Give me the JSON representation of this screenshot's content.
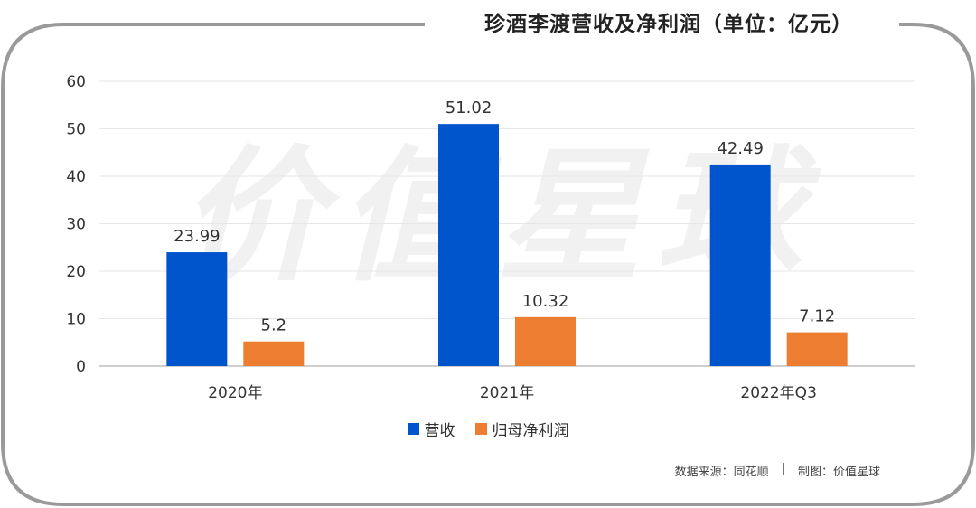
{
  "title": "珍酒李渡营收及净利润（单位：亿元）",
  "watermark": "价值星球",
  "footer": {
    "source": "数据来源：同花顺",
    "separator": "|",
    "credit": "制图：价值星球"
  },
  "colors": {
    "revenue": "#0055cc",
    "profit": "#ed7d31",
    "frame": "#9a9a9a",
    "grid": "#e6e6e6"
  },
  "chart_data": {
    "type": "bar",
    "categories": [
      "2020年",
      "2021年",
      "2022年Q3"
    ],
    "series": [
      {
        "name": "营收",
        "values": [
          23.99,
          51.02,
          42.49
        ]
      },
      {
        "name": "归母净利润",
        "values": [
          5.2,
          10.32,
          7.12
        ]
      }
    ],
    "data_labels": [
      [
        "23.99",
        "51.02",
        "42.49"
      ],
      [
        "5.2",
        "10.32",
        "7.12"
      ]
    ],
    "yticks": [
      "0",
      "10",
      "20",
      "30",
      "40",
      "50",
      "60"
    ],
    "ylim": [
      0,
      60
    ],
    "grid": true,
    "legend_position": "bottom-center"
  }
}
